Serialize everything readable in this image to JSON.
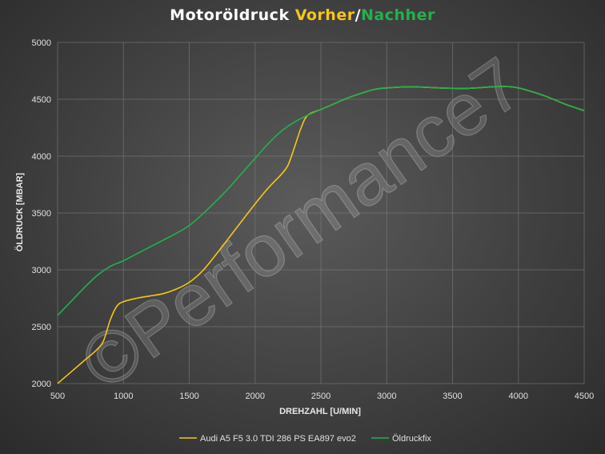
{
  "title": {
    "part1": "Motoröldruck ",
    "part2": "Vorher",
    "sep": "/",
    "part3": "Nachher",
    "colors": {
      "part1": "#ffffff",
      "part2": "#f5c518",
      "sep": "#ffffff",
      "part3": "#22b14c"
    }
  },
  "watermark": "©Performance7",
  "chart_data": {
    "type": "line",
    "xlabel": "DREHZAHL [U/MIN]",
    "ylabel": "ÖLDRUCK [MBAR]",
    "xlim": [
      500,
      4500
    ],
    "ylim": [
      2000,
      5000
    ],
    "x_ticks": [
      500,
      1000,
      1500,
      2000,
      2500,
      3000,
      3500,
      4000,
      4500
    ],
    "y_ticks": [
      2000,
      2500,
      3000,
      3500,
      4000,
      4500,
      5000
    ],
    "grid": true,
    "legend_position": "bottom",
    "series": [
      {
        "name": "Audi A5 F5 3.0 TDI 286 PS EA897 evo2",
        "color": "#f5c518",
        "points": [
          [
            500,
            2000
          ],
          [
            600,
            2100
          ],
          [
            700,
            2200
          ],
          [
            800,
            2300
          ],
          [
            850,
            2380
          ],
          [
            900,
            2560
          ],
          [
            950,
            2680
          ],
          [
            1000,
            2720
          ],
          [
            1100,
            2750
          ],
          [
            1200,
            2770
          ],
          [
            1300,
            2790
          ],
          [
            1400,
            2830
          ],
          [
            1500,
            2890
          ],
          [
            1600,
            2990
          ],
          [
            1700,
            3130
          ],
          [
            1800,
            3280
          ],
          [
            1900,
            3430
          ],
          [
            2000,
            3580
          ],
          [
            2100,
            3720
          ],
          [
            2200,
            3840
          ],
          [
            2250,
            3920
          ],
          [
            2300,
            4080
          ],
          [
            2350,
            4250
          ],
          [
            2400,
            4360
          ],
          [
            2500,
            4410
          ],
          [
            2600,
            4460
          ],
          [
            2700,
            4510
          ],
          [
            2800,
            4550
          ],
          [
            2900,
            4585
          ],
          [
            3000,
            4600
          ],
          [
            3200,
            4610
          ],
          [
            3400,
            4600
          ],
          [
            3600,
            4595
          ],
          [
            3800,
            4610
          ],
          [
            3900,
            4612
          ],
          [
            4000,
            4600
          ],
          [
            4200,
            4530
          ],
          [
            4350,
            4460
          ],
          [
            4500,
            4400
          ]
        ]
      },
      {
        "name": "Öldruckfix",
        "color": "#22b14c",
        "points": [
          [
            500,
            2600
          ],
          [
            600,
            2720
          ],
          [
            700,
            2840
          ],
          [
            800,
            2950
          ],
          [
            900,
            3030
          ],
          [
            1000,
            3080
          ],
          [
            1100,
            3140
          ],
          [
            1200,
            3200
          ],
          [
            1300,
            3260
          ],
          [
            1400,
            3320
          ],
          [
            1500,
            3390
          ],
          [
            1600,
            3490
          ],
          [
            1700,
            3600
          ],
          [
            1800,
            3720
          ],
          [
            1900,
            3850
          ],
          [
            2000,
            3980
          ],
          [
            2100,
            4110
          ],
          [
            2200,
            4220
          ],
          [
            2300,
            4300
          ],
          [
            2400,
            4360
          ],
          [
            2500,
            4410
          ],
          [
            2600,
            4460
          ],
          [
            2700,
            4510
          ],
          [
            2800,
            4550
          ],
          [
            2900,
            4585
          ],
          [
            3000,
            4600
          ],
          [
            3200,
            4610
          ],
          [
            3400,
            4600
          ],
          [
            3600,
            4595
          ],
          [
            3800,
            4610
          ],
          [
            3900,
            4612
          ],
          [
            4000,
            4600
          ],
          [
            4200,
            4530
          ],
          [
            4350,
            4460
          ],
          [
            4500,
            4400
          ]
        ]
      }
    ]
  }
}
